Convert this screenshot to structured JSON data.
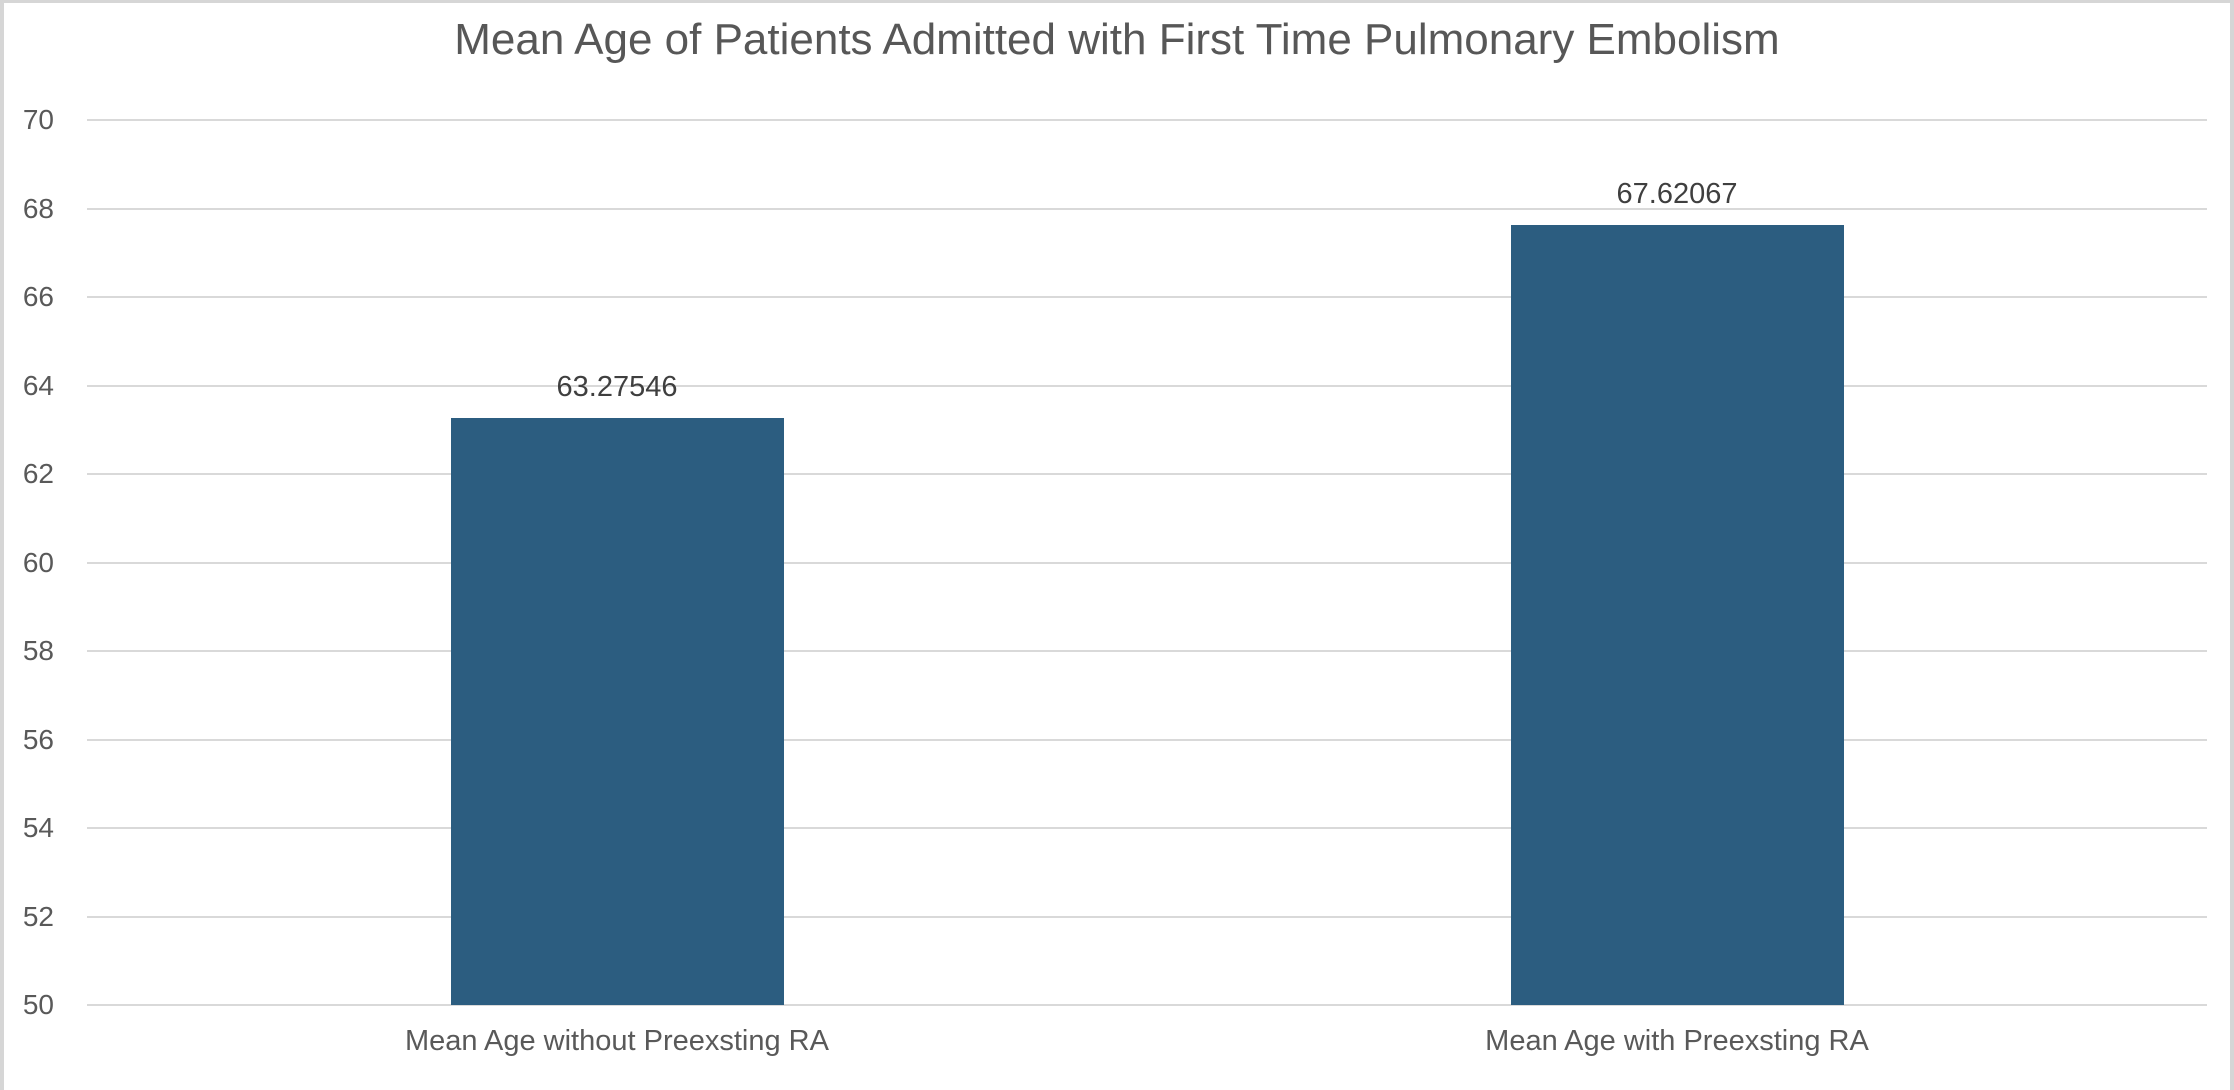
{
  "chart_data": {
    "type": "bar",
    "title": "Mean Age of Patients Admitted with First Time Pulmonary Embolism",
    "categories": [
      "Mean Age without Preexsting RA",
      "Mean Age with Preexsting RA"
    ],
    "values": [
      63.27546,
      67.62067
    ],
    "data_labels": [
      "63.27546",
      "67.62067"
    ],
    "ylim": [
      50,
      70
    ],
    "yticks": [
      50,
      52,
      54,
      56,
      58,
      60,
      62,
      64,
      66,
      68,
      70
    ],
    "xlabel": "",
    "ylabel": "",
    "grid": true,
    "legend": "none",
    "colors": {
      "bar": "#2C5D80",
      "gridline": "#D9D9D9",
      "axis_text": "#595959",
      "data_label_text": "#3F3F3F",
      "title_text": "#575757",
      "frame_border": "#D6D6D6",
      "background": "#FFFFFF"
    }
  }
}
